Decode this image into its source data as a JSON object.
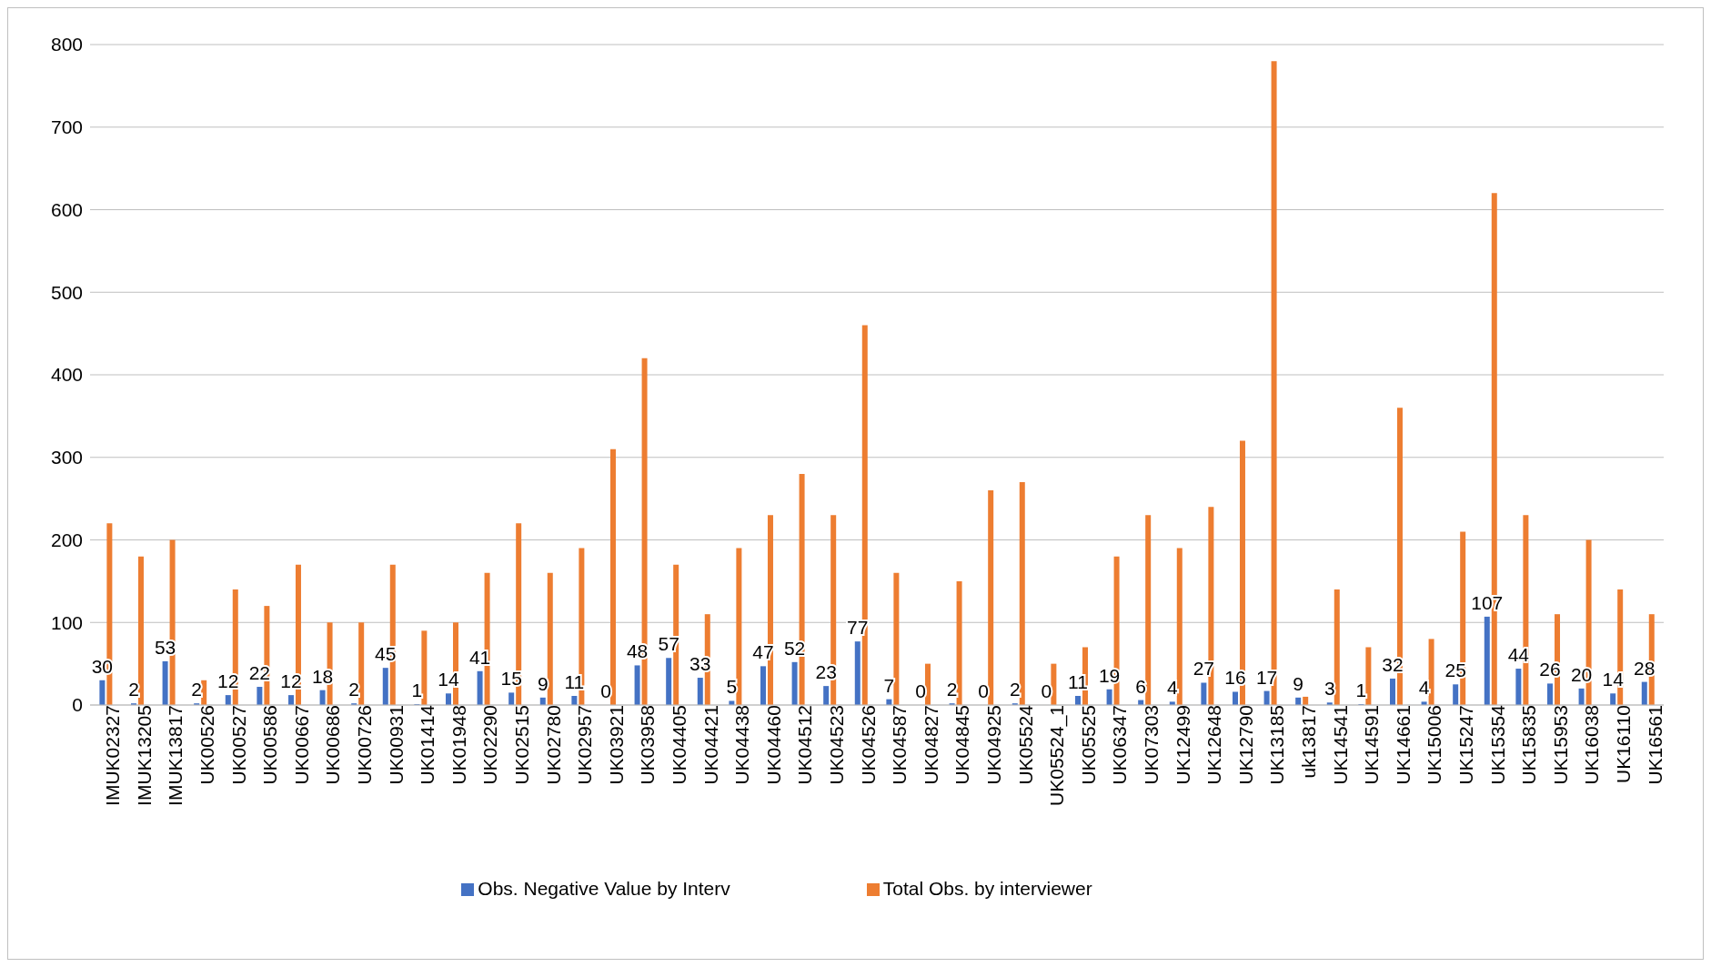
{
  "chart_data": {
    "type": "bar",
    "categories": [
      "IMUK02327",
      "IMUK13205",
      "IMUK13817",
      "UK00526",
      "UK00527",
      "UK00586",
      "UK00667",
      "UK00686",
      "UK00726",
      "UK00931",
      "UK01414",
      "UK01948",
      "UK02290",
      "UK02515",
      "UK02780",
      "UK02957",
      "UK03921",
      "UK03958",
      "UK04405",
      "UK04421",
      "UK04438",
      "UK04460",
      "UK04512",
      "UK04523",
      "UK04526",
      "UK04587",
      "UK04827",
      "UK04845",
      "UK04925",
      "UK05524",
      "UK05524_1",
      "UK05525",
      "UK06347",
      "UK07303",
      "UK12499",
      "UK12648",
      "UK12790",
      "UK13185",
      "uk13817",
      "UK14541",
      "UK14591",
      "UK14661",
      "UK15006",
      "UK15247",
      "UK15354",
      "UK15835",
      "UK15953",
      "UK16038",
      "UK16110",
      "UK16561"
    ],
    "series": [
      {
        "name": "Obs. Negative Value by Interv",
        "color": "#4472c4",
        "values": [
          30,
          2,
          53,
          2,
          12,
          22,
          12,
          18,
          2,
          45,
          1,
          14,
          41,
          15,
          9,
          11,
          0,
          48,
          57,
          33,
          5,
          47,
          52,
          23,
          77,
          7,
          0,
          2,
          0,
          2,
          0,
          11,
          19,
          6,
          4,
          27,
          16,
          17,
          9,
          3,
          1,
          32,
          4,
          25,
          107,
          44,
          26,
          20,
          14,
          28
        ],
        "value_labels": [
          "30",
          "2",
          "53",
          "2",
          "12",
          "22",
          "12",
          "18",
          "2",
          "45",
          "1",
          "14",
          "41",
          "15",
          "9",
          "11",
          "0",
          "48",
          "57",
          "33",
          "5",
          "47",
          "52",
          "23",
          "77",
          "7",
          "0",
          "2",
          "0",
          "2",
          "0",
          "11",
          "19",
          "6",
          "4",
          "27",
          "16",
          "17",
          "9",
          "3",
          "1",
          "32",
          "4",
          "25",
          "107",
          "44",
          "26",
          "20",
          "14",
          "28"
        ]
      },
      {
        "name": "Total Obs. by interviewer",
        "color": "#ed7d31",
        "values": [
          220,
          180,
          200,
          30,
          140,
          120,
          170,
          100,
          100,
          170,
          90,
          100,
          160,
          220,
          160,
          190,
          310,
          420,
          170,
          110,
          190,
          230,
          280,
          230,
          460,
          160,
          50,
          150,
          260,
          270,
          50,
          70,
          180,
          230,
          190,
          240,
          320,
          780,
          10,
          140,
          70,
          360,
          80,
          210,
          620,
          230,
          110,
          200,
          140,
          110
        ]
      }
    ],
    "ylim": [
      0,
      800
    ],
    "yticks": [
      0,
      100,
      200,
      300,
      400,
      500,
      600,
      700,
      800
    ],
    "grid": "y",
    "legend": "bottom"
  }
}
